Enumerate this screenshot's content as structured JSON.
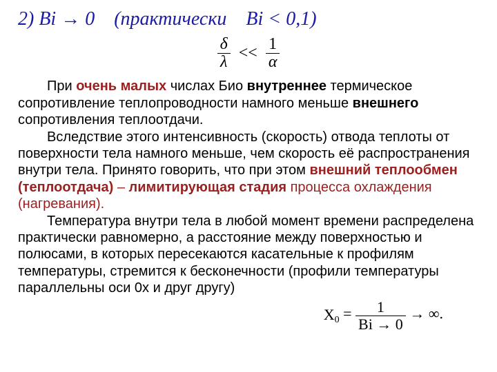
{
  "colors": {
    "title": "#1a1aa6",
    "accent_maroon": "#9a1f1f",
    "body": "#000000"
  },
  "title": {
    "prefix": "2) Bi → 0 (",
    "word_practically": "практически",
    "suffix": " Bi < 0,1)"
  },
  "formula_top": {
    "num1": "δ",
    "den1": "λ",
    "rel": "<<",
    "num2": "1",
    "den2": "α"
  },
  "para1": {
    "t1": "При ",
    "s1": "очень малых",
    "t2": " числах Био ",
    "s2": "внутреннее",
    "t3": " термическое сопротивление теплопроводности намного меньше ",
    "s3": "внешнего",
    "t4": " сопротивления теплоотдачи."
  },
  "para2": {
    "t1": "Вследствие этого интенсивность (скорость) отвода теплоты от поверхности тела намного меньше, чем скорость её распространения внутри тела. Принято говорить, что при этом ",
    "s1": "внешний теплообмен (теплоотдача)",
    "dash": " – ",
    "s2": "лимитирующая стадия",
    "t2": " процесса охлаждения (нагревания)."
  },
  "para3": {
    "t1": "Температура внутри тела в любой момент времени распределена практически равномерно, а расстояние между поверхностью и полюсами, в которых пересекаются касательные к профилям температуры, стремится к бесконечности (профили температуры параллельны оси 0х и друг другу)"
  },
  "formula_bottom": {
    "lhs_base": "X",
    "lhs_sub": "0",
    "eq": " = ",
    "num": "1",
    "den": "Bi → 0",
    "tail": " → ∞."
  }
}
